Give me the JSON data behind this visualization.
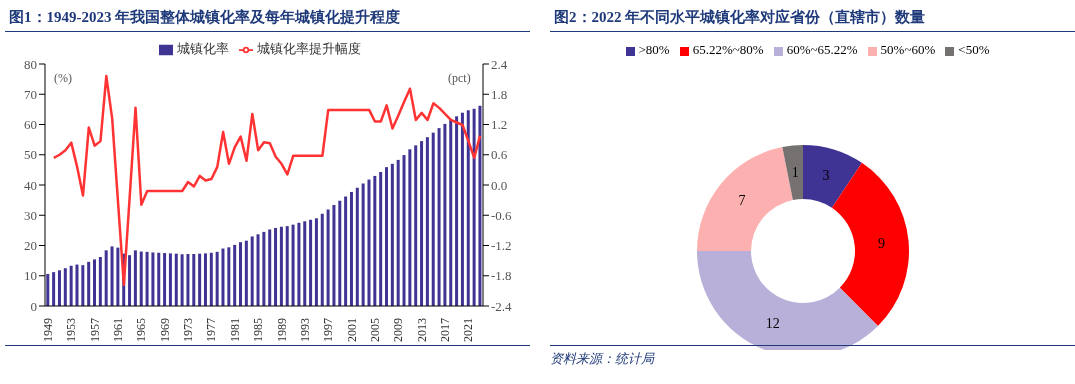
{
  "chart_data": [
    {
      "type": "bar",
      "title": "图1：1949-2023 年我国整体城镇化率及每年城镇化提升程度",
      "ylabel": "(%)",
      "y2label": "(pct)",
      "legend": "top",
      "grid": false,
      "categories": [
        "1949",
        null,
        null,
        null,
        "1953",
        null,
        null,
        null,
        "1957",
        null,
        null,
        null,
        "1961",
        null,
        null,
        null,
        "1965",
        null,
        null,
        null,
        "1969",
        null,
        null,
        null,
        "1973",
        null,
        null,
        null,
        "1977",
        null,
        null,
        null,
        "1981",
        null,
        null,
        null,
        "1985",
        null,
        null,
        null,
        "1989",
        null,
        null,
        null,
        "1993",
        null,
        null,
        null,
        "1997",
        null,
        null,
        null,
        "2001",
        null,
        null,
        null,
        "2005",
        null,
        null,
        null,
        "2009",
        null,
        null,
        null,
        "2013",
        null,
        null,
        null,
        "2017",
        null,
        null,
        null,
        "2021",
        null,
        null
      ],
      "series": [
        {
          "name": "城镇化率",
          "type": "bar",
          "color": "#3f3494",
          "values": [
            10.6,
            11.2,
            11.8,
            12.5,
            13.3,
            13.7,
            13.5,
            14.6,
            15.4,
            16.2,
            18.4,
            19.7,
            19.3,
            17.3,
            16.8,
            18.4,
            18.0,
            17.9,
            17.7,
            17.6,
            17.5,
            17.4,
            17.3,
            17.1,
            17.2,
            17.2,
            17.3,
            17.4,
            17.6,
            17.9,
            19.0,
            19.4,
            20.2,
            21.1,
            21.6,
            23.0,
            23.7,
            24.5,
            25.3,
            25.8,
            26.2,
            26.4,
            26.9,
            27.5,
            28.0,
            28.5,
            29.0,
            30.5,
            31.9,
            33.4,
            34.8,
            36.2,
            37.7,
            39.1,
            40.5,
            41.8,
            43.0,
            44.3,
            45.9,
            47.0,
            48.3,
            49.9,
            51.8,
            53.1,
            54.5,
            55.8,
            57.3,
            58.8,
            60.2,
            61.5,
            62.7,
            63.9,
            64.7,
            65.2,
            66.2
          ]
        },
        {
          "name": "城镇化率提升幅度",
          "type": "line",
          "axis": "y2",
          "color": "#ff3333",
          "values": [
            null,
            0.54,
            0.6,
            0.69,
            0.84,
            0.36,
            -0.21,
            1.14,
            0.78,
            0.87,
            2.16,
            1.32,
            -0.33,
            -1.98,
            -0.24,
            1.53,
            -0.39,
            -0.12,
            -0.12,
            -0.12,
            -0.12,
            -0.12,
            -0.12,
            -0.12,
            0.06,
            -0.03,
            0.18,
            0.09,
            0.12,
            0.36,
            1.05,
            0.42,
            0.75,
            0.96,
            0.48,
            1.41,
            0.69,
            0.85,
            0.83,
            0.56,
            0.42,
            0.21,
            0.58,
            0.58,
            0.58,
            0.58,
            0.58,
            0.58,
            1.49,
            1.49,
            1.49,
            1.49,
            1.49,
            1.49,
            1.49,
            1.49,
            1.26,
            1.26,
            1.58,
            1.12,
            1.38,
            1.65,
            1.91,
            1.29,
            1.43,
            1.29,
            1.62,
            1.53,
            1.41,
            1.29,
            1.24,
            1.19,
            0.87,
            0.54,
            0.98
          ]
        }
      ],
      "ylim": [
        0,
        80
      ],
      "yticks": [
        0,
        10,
        20,
        30,
        40,
        50,
        60,
        70,
        80
      ],
      "y2lim": [
        -2.4,
        2.4
      ],
      "y2ticks": [
        -2.4,
        -1.8,
        -1.2,
        -0.6,
        {
          "value": 0,
          "label": "0.0"
        },
        0.6,
        1.2,
        1.8,
        2.4
      ]
    },
    {
      "type": "donut",
      "title": "图2：2022 年不同水平城镇化率对应省份（直辖市）数量",
      "legend": "top",
      "data_labels": true,
      "categories": [
        ">80%",
        "65.22%~80%",
        "60%~65.22%",
        "50%~60%",
        "<50%"
      ],
      "values": [
        3,
        9,
        12,
        7,
        1
      ],
      "colors": [
        "#3f3494",
        "#ff0000",
        "#b8b0d8",
        "#fdb0b0",
        "#767171"
      ],
      "annotations": [
        "资料来源：统计局"
      ]
    }
  ]
}
